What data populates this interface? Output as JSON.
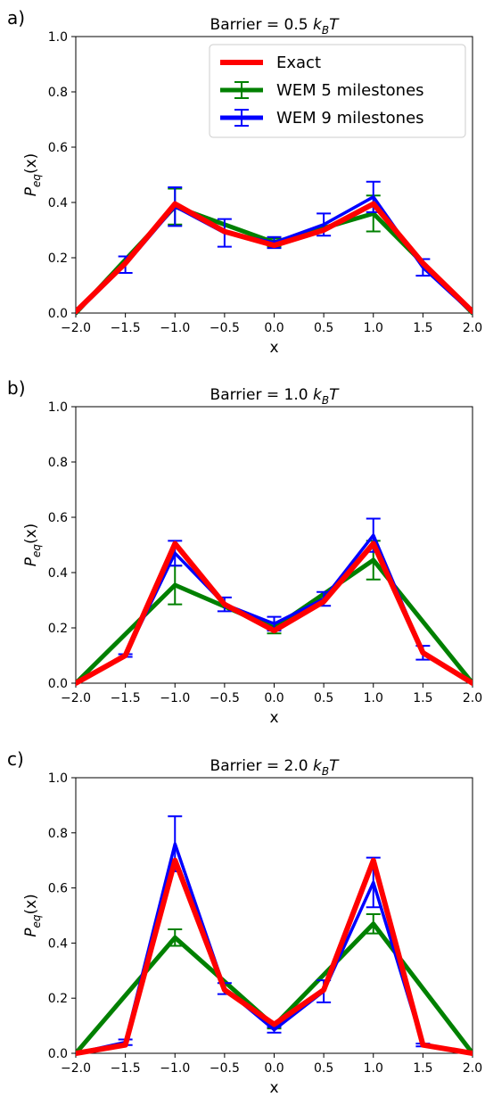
{
  "chart_data": [
    {
      "type": "line",
      "panel_label": "a)",
      "title": "Barrier = 0.5 k_BT",
      "title_prefix": "Barrier = 0.5 ",
      "xlabel": "x",
      "ylabel": "P_eq(x)",
      "xlim": [
        -2.0,
        2.0
      ],
      "ylim": [
        0.0,
        1.0
      ],
      "xticks": [
        "−2.0",
        "−1.5",
        "−1.0",
        "−0.5",
        "0.0",
        "0.5",
        "1.0",
        "1.5",
        "2.0"
      ],
      "yticks": [
        "0.0",
        "0.2",
        "0.4",
        "0.6",
        "0.8",
        "1.0"
      ],
      "legend": "top-right",
      "series": [
        {
          "name": "Exact",
          "color": "#ff0000",
          "x": [
            -2.0,
            -1.5,
            -1.0,
            -0.5,
            0.0,
            0.5,
            1.0,
            1.5,
            2.0
          ],
          "y": [
            0.005,
            0.18,
            0.395,
            0.295,
            0.245,
            0.3,
            0.395,
            0.18,
            0.005
          ]
        },
        {
          "name": "WEM 5 milestones",
          "color": "#008000",
          "x": [
            -2.0,
            -1.0,
            0.0,
            1.0,
            2.0
          ],
          "y": [
            0.0,
            0.385,
            0.255,
            0.36,
            0.0
          ],
          "err": [
            0.0,
            0.065,
            0.015,
            0.065,
            0.0
          ]
        },
        {
          "name": "WEM 9 milestones",
          "color": "#0000ff",
          "x": [
            -2.0,
            -1.5,
            -1.0,
            -0.5,
            0.0,
            0.5,
            1.0,
            1.5,
            2.0
          ],
          "y": [
            0.0,
            0.175,
            0.385,
            0.29,
            0.255,
            0.32,
            0.42,
            0.165,
            0.0
          ],
          "err": [
            0.0,
            0.03,
            0.07,
            0.05,
            0.02,
            0.04,
            0.055,
            0.03,
            0.0
          ]
        }
      ]
    },
    {
      "type": "line",
      "panel_label": "b)",
      "title": "Barrier = 1.0 k_BT",
      "title_prefix": "Barrier = 1.0 ",
      "xlabel": "x",
      "ylabel": "P_eq(x)",
      "xlim": [
        -2.0,
        2.0
      ],
      "ylim": [
        0.0,
        1.0
      ],
      "xticks": [
        "−2.0",
        "−1.5",
        "−1.0",
        "−0.5",
        "0.0",
        "0.5",
        "1.0",
        "1.5",
        "2.0"
      ],
      "yticks": [
        "0.0",
        "0.2",
        "0.4",
        "0.6",
        "0.8",
        "1.0"
      ],
      "series": [
        {
          "name": "Exact",
          "color": "#ff0000",
          "x": [
            -2.0,
            -1.5,
            -1.0,
            -0.5,
            0.0,
            0.5,
            1.0,
            1.5,
            2.0
          ],
          "y": [
            0.0,
            0.1,
            0.505,
            0.285,
            0.19,
            0.295,
            0.505,
            0.11,
            0.0
          ]
        },
        {
          "name": "WEM 5 milestones",
          "color": "#008000",
          "x": [
            -2.0,
            -1.0,
            0.0,
            1.0,
            2.0
          ],
          "y": [
            0.0,
            0.355,
            0.2,
            0.445,
            0.0
          ],
          "err": [
            0.0,
            0.07,
            0.02,
            0.07,
            0.0
          ]
        },
        {
          "name": "WEM 9 milestones",
          "color": "#0000ff",
          "x": [
            -2.0,
            -1.5,
            -1.0,
            -0.5,
            0.0,
            0.5,
            1.0,
            1.5,
            2.0
          ],
          "y": [
            0.0,
            0.1,
            0.47,
            0.285,
            0.215,
            0.305,
            0.535,
            0.11,
            0.0
          ],
          "err": [
            0.0,
            0.005,
            0.045,
            0.025,
            0.025,
            0.025,
            0.06,
            0.025,
            0.0
          ]
        }
      ]
    },
    {
      "type": "line",
      "panel_label": "c)",
      "title": "Barrier = 2.0 k_BT",
      "title_prefix": "Barrier = 2.0 ",
      "xlabel": "x",
      "ylabel": "P_eq(x)",
      "xlim": [
        -2.0,
        2.0
      ],
      "ylim": [
        0.0,
        1.0
      ],
      "xticks": [
        "−2.0",
        "−1.5",
        "−1.0",
        "−0.5",
        "0.0",
        "0.5",
        "1.0",
        "1.5",
        "2.0"
      ],
      "yticks": [
        "0.0",
        "0.2",
        "0.4",
        "0.6",
        "0.8",
        "1.0"
      ],
      "series": [
        {
          "name": "Exact",
          "color": "#ff0000",
          "x": [
            -2.0,
            -1.5,
            -1.0,
            -0.5,
            0.0,
            0.5,
            1.0,
            1.5,
            2.0
          ],
          "y": [
            0.0,
            0.03,
            0.7,
            0.23,
            0.105,
            0.23,
            0.7,
            0.03,
            0.0
          ]
        },
        {
          "name": "WEM 5 milestones",
          "color": "#008000",
          "x": [
            -2.0,
            -1.0,
            0.0,
            1.0,
            2.0
          ],
          "y": [
            0.0,
            0.42,
            0.1,
            0.47,
            0.0
          ],
          "err": [
            0.0,
            0.03,
            0.01,
            0.035,
            0.0
          ]
        },
        {
          "name": "WEM 9 milestones",
          "color": "#0000ff",
          "x": [
            -2.0,
            -1.5,
            -1.0,
            -0.5,
            0.0,
            0.5,
            1.0,
            1.5,
            2.0
          ],
          "y": [
            0.0,
            0.04,
            0.76,
            0.235,
            0.085,
            0.225,
            0.62,
            0.03,
            0.0
          ],
          "err": [
            0.0,
            0.01,
            0.1,
            0.02,
            0.01,
            0.04,
            0.09,
            0.005,
            0.0
          ]
        }
      ]
    }
  ]
}
